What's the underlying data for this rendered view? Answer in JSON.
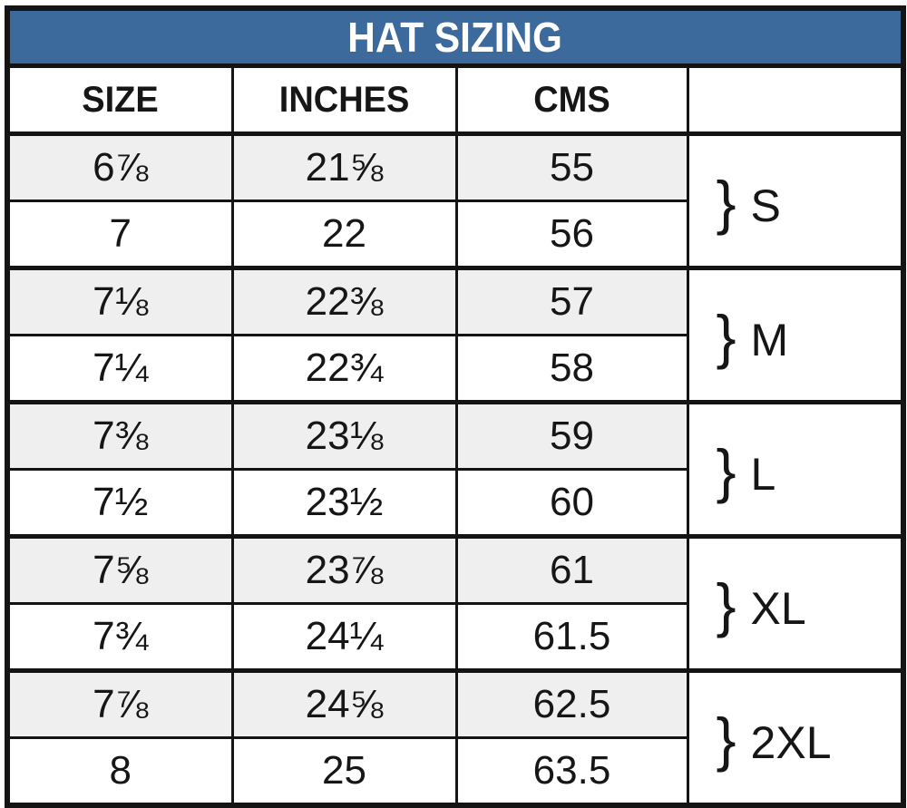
{
  "title": "HAT SIZING",
  "columns": {
    "size": "SIZE",
    "inches": "INCHES",
    "cms": "CMS",
    "group": ""
  },
  "rows": [
    {
      "size": "6⅞",
      "inches": "21⅝",
      "cms": "55"
    },
    {
      "size": "7",
      "inches": "22",
      "cms": "56"
    },
    {
      "size": "7⅛",
      "inches": "22⅜",
      "cms": "57"
    },
    {
      "size": "7¼",
      "inches": "22¾",
      "cms": "58"
    },
    {
      "size": "7⅜",
      "inches": "23⅛",
      "cms": "59"
    },
    {
      "size": "7½",
      "inches": "23½",
      "cms": "60"
    },
    {
      "size": "7⅝",
      "inches": "23⅞",
      "cms": "61"
    },
    {
      "size": "7¾",
      "inches": "24¼",
      "cms": "61.5"
    },
    {
      "size": "7⅞",
      "inches": "24⅝",
      "cms": "62.5"
    },
    {
      "size": "8",
      "inches": "25",
      "cms": "63.5"
    }
  ],
  "groups": [
    {
      "brace": "}",
      "label": "S"
    },
    {
      "brace": "}",
      "label": "M"
    },
    {
      "brace": "}",
      "label": "L"
    },
    {
      "brace": "}",
      "label": "XL"
    },
    {
      "brace": "}",
      "label": "2XL"
    }
  ],
  "colors": {
    "header_bg": "#3d6a9d",
    "header_text": "#ffffff",
    "row_alt_bg": "#efefef",
    "border": "#141414",
    "text": "#161616"
  },
  "chart_data": {
    "type": "table",
    "title": "HAT SIZING",
    "columns": [
      "SIZE",
      "INCHES",
      "CMS",
      ""
    ],
    "rows": [
      [
        "6⅞",
        "21⅝",
        "55"
      ],
      [
        "7",
        "22",
        "56"
      ],
      [
        "7⅛",
        "22⅜",
        "57"
      ],
      [
        "7¼",
        "22¾",
        "58"
      ],
      [
        "7⅜",
        "23⅛",
        "59"
      ],
      [
        "7½",
        "23½",
        "60"
      ],
      [
        "7⅝",
        "23⅞",
        "61"
      ],
      [
        "7¾",
        "24¼",
        "61.5"
      ],
      [
        "7⅞",
        "24⅝",
        "62.5"
      ],
      [
        "8",
        "25",
        "63.5"
      ]
    ],
    "groups": [
      {
        "label": "S",
        "rows": [
          0,
          1
        ]
      },
      {
        "label": "M",
        "rows": [
          2,
          3
        ]
      },
      {
        "label": "L",
        "rows": [
          4,
          5
        ]
      },
      {
        "label": "XL",
        "rows": [
          6,
          7
        ]
      },
      {
        "label": "2XL",
        "rows": [
          8,
          9
        ]
      }
    ],
    "layout_hints": {
      "grid": true,
      "alternating_row_pairs": true,
      "group_braces_right_column": true
    }
  }
}
